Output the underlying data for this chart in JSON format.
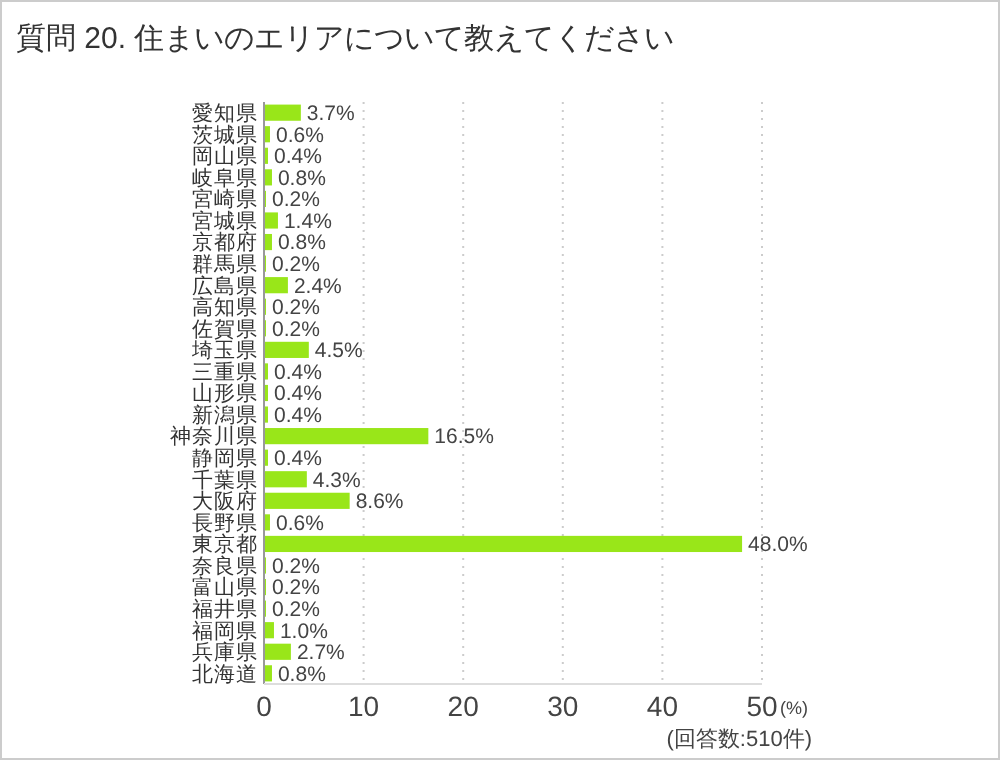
{
  "chart_data": {
    "type": "bar",
    "orientation": "horizontal",
    "title": "質問 20. 住まいのエリアについて教えてください",
    "xlabel": "(%)",
    "annotations": [
      "(回答数:510件)"
    ],
    "categories": [
      "愛知県",
      "茨城県",
      "岡山県",
      "岐阜県",
      "宮崎県",
      "宮城県",
      "京都府",
      "群馬県",
      "広島県",
      "高知県",
      "佐賀県",
      "埼玉県",
      "三重県",
      "山形県",
      "新潟県",
      "神奈川県",
      "静岡県",
      "千葉県",
      "大阪府",
      "長野県",
      "東京都",
      "奈良県",
      "富山県",
      "福井県",
      "福岡県",
      "兵庫県",
      "北海道"
    ],
    "values": [
      3.7,
      0.6,
      0.4,
      0.8,
      0.2,
      1.4,
      0.8,
      0.2,
      2.4,
      0.2,
      0.2,
      4.5,
      0.4,
      0.4,
      0.4,
      16.5,
      0.4,
      4.3,
      8.6,
      0.6,
      48.0,
      0.2,
      0.2,
      0.2,
      1.0,
      2.7,
      0.8
    ],
    "value_labels": [
      "3.7%",
      "0.6%",
      "0.4%",
      "0.8%",
      "0.2%",
      "1.4%",
      "0.8%",
      "0.2%",
      "2.4%",
      "0.2%",
      "0.2%",
      "4.5%",
      "0.4%",
      "0.4%",
      "0.4%",
      "16.5%",
      "0.4%",
      "4.3%",
      "8.6%",
      "0.6%",
      "48.0%",
      "0.2%",
      "0.2%",
      "0.2%",
      "1.0%",
      "2.7%",
      "0.8%"
    ],
    "color": "#99e619",
    "xlim": [
      0,
      50
    ],
    "xticks": [
      0,
      10,
      20,
      30,
      40,
      50
    ],
    "grid": "x"
  }
}
